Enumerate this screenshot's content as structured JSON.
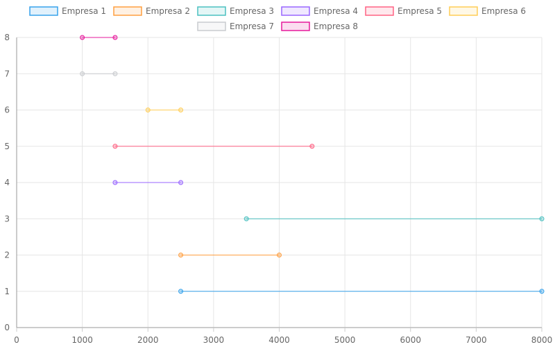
{
  "chart_data": {
    "type": "line",
    "title": "",
    "xlabel": "",
    "ylabel": "",
    "xlim": [
      0,
      8000
    ],
    "ylim": [
      0,
      8
    ],
    "xticks": [
      0,
      1000,
      2000,
      3000,
      4000,
      5000,
      6000,
      7000,
      8000
    ],
    "yticks": [
      0,
      1,
      2,
      3,
      4,
      5,
      6,
      7,
      8
    ],
    "grid": true,
    "legend_position": "top",
    "series": [
      {
        "name": "Empresa 1",
        "color": "#36a2eb",
        "points": [
          [
            2500,
            1
          ],
          [
            8000,
            1
          ]
        ]
      },
      {
        "name": "Empresa 2",
        "color": "#ff9f40",
        "points": [
          [
            2500,
            2
          ],
          [
            4000,
            2
          ]
        ]
      },
      {
        "name": "Empresa 3",
        "color": "#4bc0c0",
        "points": [
          [
            3500,
            3
          ],
          [
            8000,
            3
          ]
        ]
      },
      {
        "name": "Empresa 4",
        "color": "#9966ff",
        "points": [
          [
            1500,
            4
          ],
          [
            2500,
            4
          ]
        ]
      },
      {
        "name": "Empresa 5",
        "color": "#ff6384",
        "points": [
          [
            1500,
            5
          ],
          [
            4500,
            5
          ]
        ]
      },
      {
        "name": "Empresa 6",
        "color": "#ffcd56",
        "points": [
          [
            2000,
            6
          ],
          [
            2500,
            6
          ]
        ]
      },
      {
        "name": "Empresa 7",
        "color": "#c9cbcf",
        "points": [
          [
            1000,
            7
          ],
          [
            1500,
            7
          ]
        ]
      },
      {
        "name": "Empresa 8",
        "color": "#e6199b",
        "points": [
          [
            1000,
            8
          ],
          [
            1500,
            8
          ]
        ]
      }
    ]
  }
}
